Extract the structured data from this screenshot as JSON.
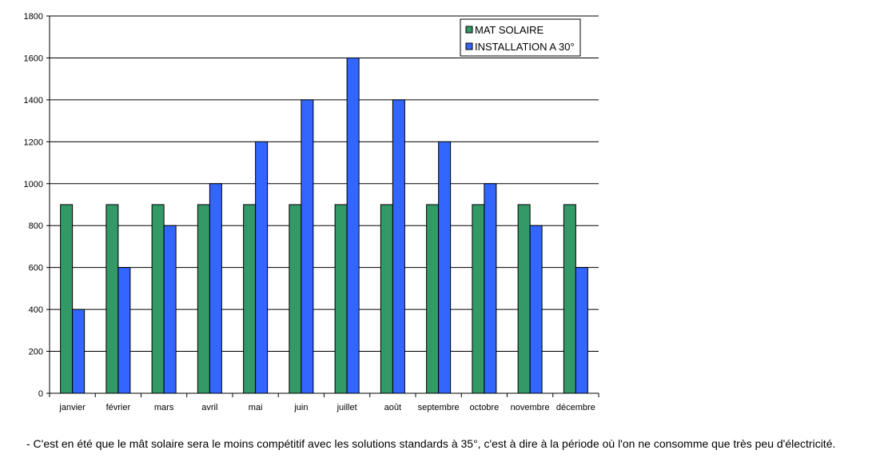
{
  "chart_data": {
    "type": "bar",
    "title": "",
    "xlabel": "",
    "ylabel": "",
    "ylim": [
      0,
      1800
    ],
    "yticks": [
      0,
      200,
      400,
      600,
      800,
      1000,
      1200,
      1400,
      1600,
      1800
    ],
    "grid": true,
    "legend_position": "top-right",
    "categories": [
      "janvier",
      "février",
      "mars",
      "avril",
      "mai",
      "juin",
      "juillet",
      "août",
      "septembre",
      "octobre",
      "novembre",
      "décembre"
    ],
    "series": [
      {
        "name": "MAT SOLAIRE",
        "color": "#339966",
        "values": [
          900,
          900,
          900,
          900,
          900,
          900,
          900,
          900,
          900,
          900,
          900,
          900
        ]
      },
      {
        "name": "INSTALLATION A 30°",
        "color": "#3366ff",
        "values": [
          400,
          600,
          800,
          1000,
          1200,
          1400,
          1600,
          1400,
          1200,
          1000,
          800,
          600
        ]
      }
    ]
  },
  "caption": "- C'est en été que le mât solaire sera le moins compétitif avec les solutions standards à 35°, c'est à dire à la période où l'on ne consomme que très peu d'électricité."
}
